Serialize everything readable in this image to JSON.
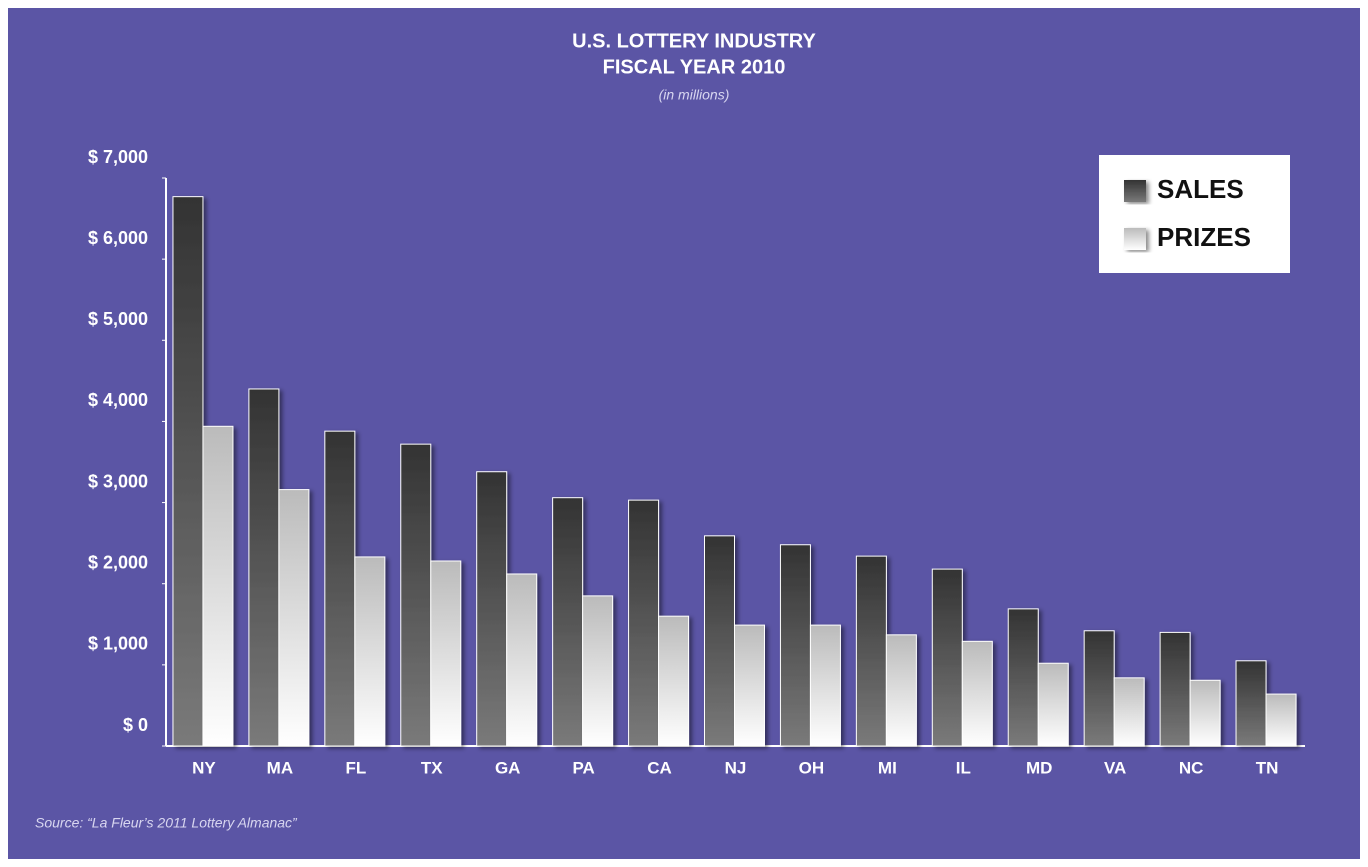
{
  "chart_data": {
    "type": "bar",
    "title": "U.S. LOTTERY INDUSTRY",
    "subtitle": "FISCAL YEAR 2010",
    "unit_note": "(in millions)",
    "source": "Source: “La Fleur’s 2011 Lottery Almanac”",
    "categories": [
      "NY",
      "MA",
      "FL",
      "TX",
      "GA",
      "PA",
      "CA",
      "NJ",
      "OH",
      "MI",
      "IL",
      "MD",
      "VA",
      "NC",
      "TN"
    ],
    "series": [
      {
        "name": "SALES",
        "color": "#333333",
        "values": [
          6770,
          4400,
          3880,
          3720,
          3380,
          3060,
          3030,
          2590,
          2480,
          2340,
          2180,
          1690,
          1420,
          1400,
          1050
        ]
      },
      {
        "name": "PRIZES",
        "color": "#bbbbbb",
        "values": [
          3940,
          3160,
          2330,
          2280,
          2120,
          1850,
          1600,
          1490,
          1490,
          1370,
          1290,
          1020,
          840,
          810,
          640
        ]
      }
    ],
    "ylim": [
      0,
      7000
    ],
    "yticks": [
      {
        "value": 0,
        "label": "$ 0"
      },
      {
        "value": 1000,
        "label": "$ 1,000"
      },
      {
        "value": 2000,
        "label": "$ 2,000"
      },
      {
        "value": 3000,
        "label": "$ 3,000"
      },
      {
        "value": 4000,
        "label": "$ 4,000"
      },
      {
        "value": 5000,
        "label": "$ 5,000"
      },
      {
        "value": 6000,
        "label": "$ 6,000"
      },
      {
        "value": 7000,
        "label": "$ 7,000"
      }
    ],
    "legend": "upper right"
  }
}
